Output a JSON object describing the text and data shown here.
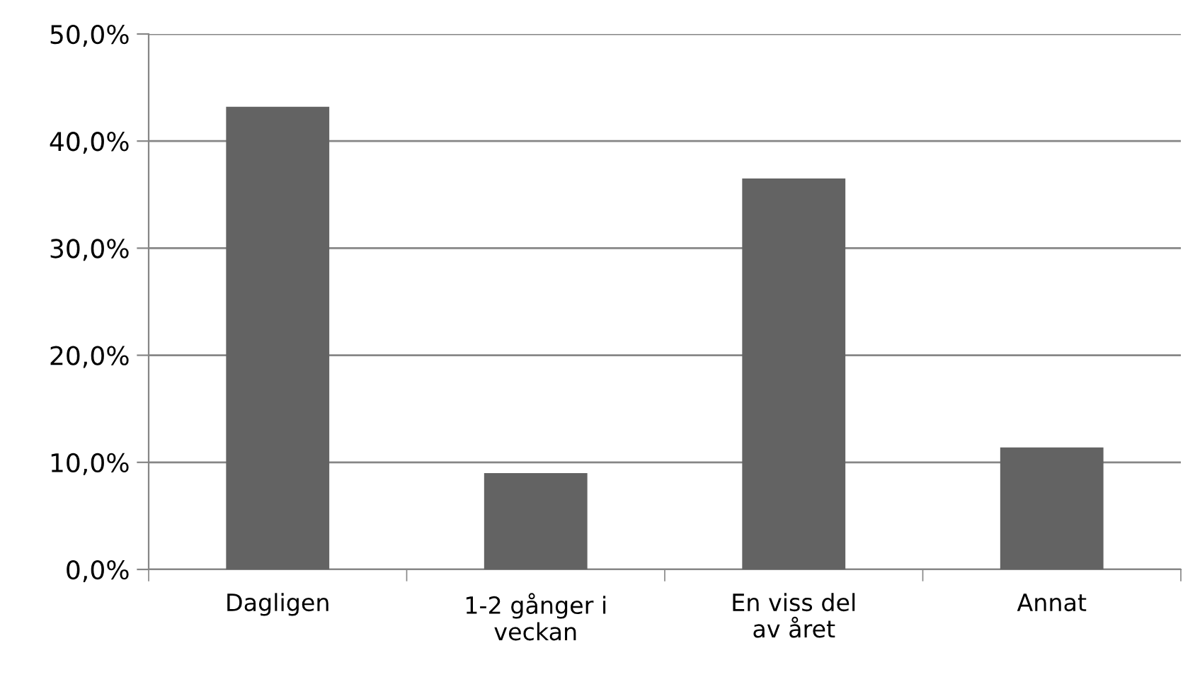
{
  "chart_data": {
    "type": "bar",
    "categories": [
      "Dagligen",
      "1-2 gånger i veckan",
      "En viss del av året",
      "Annat"
    ],
    "values": [
      43.2,
      9.0,
      36.5,
      11.4
    ],
    "color": "#636363",
    "ylim": [
      0,
      50
    ],
    "yticks": [
      {
        "value": 0,
        "label": "0,0%"
      },
      {
        "value": 10,
        "label": "10,0%"
      },
      {
        "value": 20,
        "label": "20,0%"
      },
      {
        "value": 30,
        "label": "30,0%"
      },
      {
        "value": 40,
        "label": "40,0%"
      },
      {
        "value": 50,
        "label": "50,0%"
      }
    ],
    "grid": "y",
    "legend": false
  }
}
